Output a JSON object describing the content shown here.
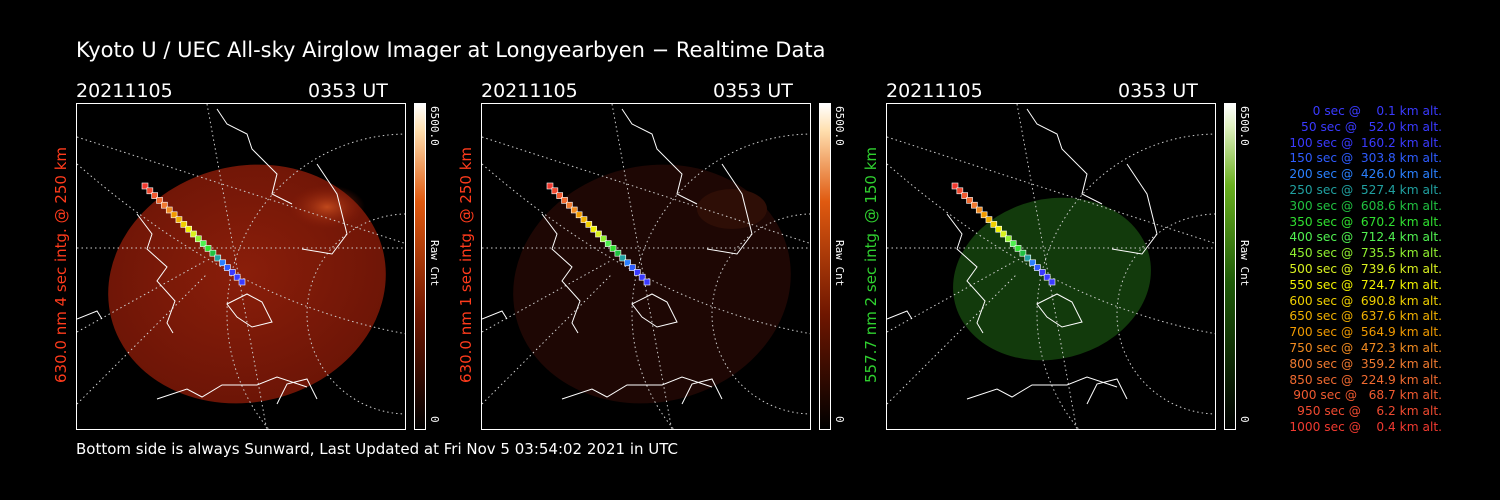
{
  "title": "Kyoto U / UEC All-sky Airglow Imager at Longyearbyen − Realtime Data",
  "footer": "Bottom side is always Sunward, Last Updated at Fri Nov  5 03:54:02 2021 in UTC",
  "panels": [
    {
      "date": "20211105",
      "time": "0353 UT",
      "side_label": "630.0 nm 4 sec intg. @ 250 km",
      "side_color": "#ff3b1c",
      "cbar_max": "6500.0",
      "cbar_min": "0",
      "cbar_unit": "Raw Cnt",
      "cbar_color": "#ff5a00"
    },
    {
      "date": "20211105",
      "time": "0353 UT",
      "side_label": "630.0 nm 1 sec intg. @ 250 km",
      "side_color": "#ff3b1c",
      "cbar_max": "6500.0",
      "cbar_min": "0",
      "cbar_unit": "Raw Cnt",
      "cbar_color": "#ff5a00"
    },
    {
      "date": "20211105",
      "time": "0353 UT",
      "side_label": "557.7 nm 2 sec intg. @ 150 km",
      "side_color": "#2fd02f",
      "cbar_max": "6500.0",
      "cbar_min": "0",
      "cbar_unit": "Raw Cnt",
      "cbar_color": "#4caf1a"
    }
  ],
  "legend": [
    {
      "text": "   0 sec @    0.1 km alt.",
      "color": "#3a3aff"
    },
    {
      "text": "  50 sec @   52.0 km alt.",
      "color": "#3a3aff"
    },
    {
      "text": " 100 sec @  160.2 km alt.",
      "color": "#3a3aff"
    },
    {
      "text": " 150 sec @  303.8 km alt.",
      "color": "#2e5cff"
    },
    {
      "text": " 200 sec @  426.0 km alt.",
      "color": "#2a80ff"
    },
    {
      "text": " 250 sec @  527.4 km alt.",
      "color": "#20a0a0"
    },
    {
      "text": " 300 sec @  608.6 km alt.",
      "color": "#20c040"
    },
    {
      "text": " 350 sec @  670.2 km alt.",
      "color": "#30e030"
    },
    {
      "text": " 400 sec @  712.4 km alt.",
      "color": "#50f050"
    },
    {
      "text": " 450 sec @  735.5 km alt.",
      "color": "#90f030"
    },
    {
      "text": " 500 sec @  739.6 km alt.",
      "color": "#d8f020"
    },
    {
      "text": " 550 sec @  724.7 km alt.",
      "color": "#f0f000"
    },
    {
      "text": " 600 sec @  690.8 km alt.",
      "color": "#f0d000"
    },
    {
      "text": " 650 sec @  637.6 km alt.",
      "color": "#f0b000"
    },
    {
      "text": " 700 sec @  564.9 km alt.",
      "color": "#f09a00"
    },
    {
      "text": " 750 sec @  472.3 km alt.",
      "color": "#f08a20"
    },
    {
      "text": " 800 sec @  359.2 km alt.",
      "color": "#f07a30"
    },
    {
      "text": " 850 sec @  224.9 km alt.",
      "color": "#f06a30"
    },
    {
      "text": " 900 sec @   68.7 km alt.",
      "color": "#f05a30"
    },
    {
      "text": " 950 sec @    6.2 km alt.",
      "color": "#f04a30"
    },
    {
      "text": "1000 sec @    0.4 km alt.",
      "color": "#f03a30"
    }
  ]
}
